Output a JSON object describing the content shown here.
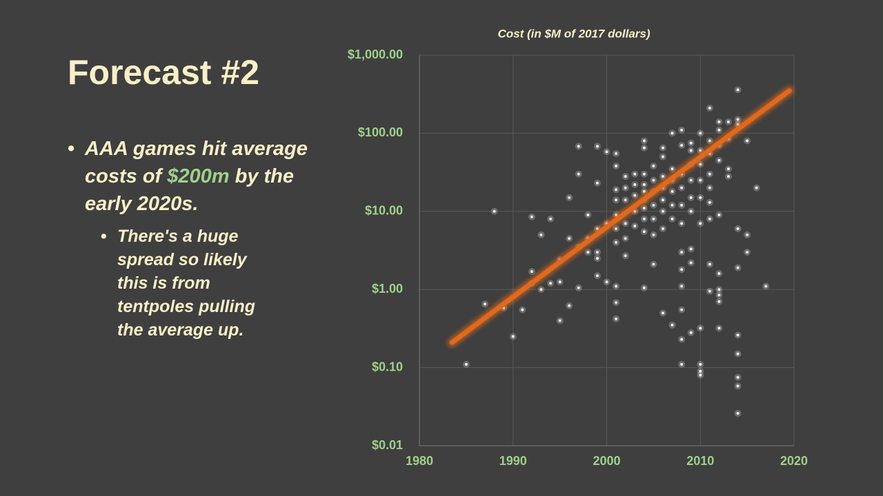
{
  "slide": {
    "title": "Forecast #2",
    "bullets": [
      {
        "parts": [
          "AAA games hit average costs of ",
          "$200m",
          " by the early 2020s."
        ],
        "sub": [
          "There's a huge spread so likely this is from tentpoles pulling the average up."
        ]
      }
    ]
  },
  "chart_data": {
    "type": "scatter",
    "title": "Cost (in $M of 2017 dollars)",
    "x": [
      1985,
      1987,
      1988,
      1989,
      1990,
      1991,
      1992,
      1992,
      1992,
      1993,
      1993,
      1994,
      1994,
      1995,
      1995,
      1995,
      1996,
      1996,
      1996,
      1997,
      1997,
      1997,
      1997,
      1998,
      1998,
      1998,
      1999,
      1999,
      1999,
      1999,
      1999,
      1999,
      2000,
      2000,
      2000,
      2001,
      2001,
      2001,
      2001,
      2001,
      2001,
      2001,
      2001,
      2001,
      2001,
      2002,
      2002,
      2002,
      2002,
      2002,
      2002,
      2003,
      2003,
      2003,
      2003,
      2003,
      2004,
      2004,
      2004,
      2004,
      2004,
      2004,
      2004,
      2004,
      2004,
      2004,
      2005,
      2005,
      2005,
      2005,
      2005,
      2005,
      2005,
      2006,
      2006,
      2006,
      2006,
      2006,
      2006,
      2006,
      2006,
      2007,
      2007,
      2007,
      2007,
      2007,
      2007,
      2007,
      2008,
      2008,
      2008,
      2008,
      2008,
      2008,
      2008,
      2008,
      2008,
      2008,
      2008,
      2008,
      2009,
      2009,
      2009,
      2009,
      2009,
      2009,
      2009,
      2009,
      2009,
      2010,
      2010,
      2010,
      2010,
      2010,
      2010,
      2010,
      2010,
      2010,
      2010,
      2011,
      2011,
      2011,
      2011,
      2011,
      2011,
      2011,
      2011,
      2011,
      2012,
      2012,
      2012,
      2012,
      2012,
      2012,
      2012,
      2012,
      2012,
      2012,
      2013,
      2013,
      2013,
      2013,
      2014,
      2014,
      2014,
      2014,
      2014,
      2014,
      2014,
      2014,
      2014,
      2014,
      2015,
      2015,
      2015,
      2016,
      2017
    ],
    "values": [
      0.11,
      0.65,
      10,
      0.58,
      0.25,
      0.55,
      8.5,
      1.7,
      1.2,
      5,
      1.0,
      8,
      1.2,
      0.4,
      1.25,
      2.4,
      15,
      4.5,
      0.62,
      68,
      30,
      3.5,
      1.05,
      9,
      4.5,
      3,
      68,
      23,
      6,
      3,
      2.5,
      1.5,
      58,
      7,
      1.25,
      55,
      38,
      19,
      14,
      9,
      6,
      4,
      1.1,
      0.68,
      0.42,
      28,
      20,
      14,
      7,
      4.5,
      2.7,
      30,
      22,
      16,
      10,
      6.5,
      80,
      65,
      30,
      22,
      18,
      14,
      11,
      8,
      5.5,
      1.05,
      38,
      25,
      18,
      12,
      8,
      5,
      2.1,
      65,
      50,
      28,
      20,
      14,
      10,
      6,
      0.5,
      100,
      35,
      25,
      18,
      12,
      8,
      0.35,
      110,
      70,
      30,
      20,
      12,
      7,
      3,
      1.8,
      1.1,
      0.55,
      0.23,
      0.11,
      75,
      60,
      40,
      25,
      15,
      10,
      3.3,
      2.2,
      0.28,
      100,
      60,
      40,
      25,
      15,
      7,
      0.32,
      0.11,
      0.09,
      0.08,
      210,
      80,
      55,
      30,
      20,
      13,
      8,
      2.1,
      0.95,
      140,
      110,
      70,
      45,
      9,
      1.6,
      1.0,
      0.85,
      0.7,
      0.32,
      140,
      85,
      35,
      28,
      360,
      150,
      130,
      6,
      1.9,
      0.26,
      0.15,
      0.075,
      0.058,
      0.026,
      80,
      5,
      3,
      20,
      1.1
    ],
    "color": "#ffffff",
    "trend": {
      "x": [
        1983.5,
        2019.5
      ],
      "values": [
        0.21,
        350
      ],
      "color": "#e0691c"
    },
    "xlim": [
      1980,
      2020
    ],
    "xticks": [
      1980,
      1990,
      2000,
      2010,
      2020
    ],
    "ylim": [
      0.01,
      1000
    ],
    "log_y": true,
    "grid": true,
    "yticks": [
      {
        "value": 0.01,
        "label": "$0.01"
      },
      {
        "value": 0.1,
        "label": "$0.10"
      },
      {
        "value": 1,
        "label": "$1.00"
      },
      {
        "value": 10,
        "label": "$10.00"
      },
      {
        "value": 100,
        "label": "$100.00"
      },
      {
        "value": 1000,
        "label": "$1,000.00"
      }
    ]
  }
}
